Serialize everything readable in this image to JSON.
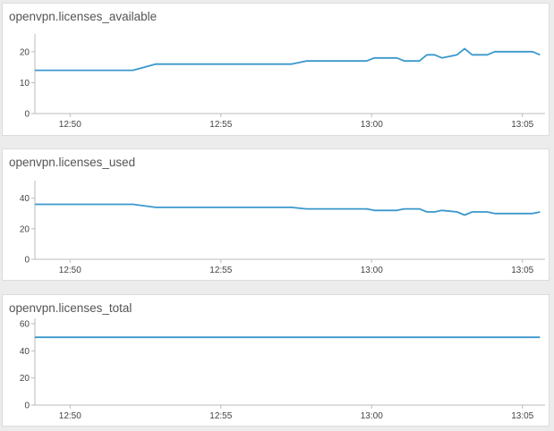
{
  "style": {
    "line_color": "#3a98cc",
    "axis_color": "#bbbbbb",
    "text_color": "#444444"
  },
  "panels": [
    {
      "title": "openvpn.licenses_available",
      "chart_data": {
        "type": "line",
        "title": "openvpn.licenses_available",
        "x_ticks": [
          "12:50",
          "12:55",
          "13:00",
          "13:05"
        ],
        "y_ticks": [
          0,
          10,
          20
        ],
        "ylim": [
          0,
          24
        ],
        "xlim": [
          "12:48:50",
          "13:05:45"
        ],
        "grid": false,
        "series": [
          {
            "x": [
              "12:48:50",
              "12:49:50",
              "12:50:50",
              "12:51:50",
              "12:52:05",
              "12:52:50",
              "12:53:50",
              "12:54:50",
              "12:55:50",
              "12:56:50",
              "12:57:05",
              "12:57:20",
              "12:57:50",
              "12:58:50",
              "12:59:50",
              "13:00:05",
              "13:00:50",
              "13:01:05",
              "13:01:35",
              "13:01:50",
              "13:02:05",
              "13:02:20",
              "13:02:50",
              "13:03:05",
              "13:03:20",
              "13:03:50",
              "13:04:05",
              "13:04:50",
              "13:05:20",
              "13:05:35"
            ],
            "values": [
              14,
              14,
              14,
              14,
              14,
              16,
              16,
              16,
              16,
              16,
              16,
              16,
              17,
              17,
              17,
              18,
              18,
              17,
              17,
              19,
              19,
              18,
              19,
              21,
              19,
              19,
              20,
              20,
              20,
              19
            ]
          }
        ]
      }
    },
    {
      "title": "openvpn.licenses_used",
      "chart_data": {
        "type": "line",
        "title": "openvpn.licenses_used",
        "x_ticks": [
          "12:50",
          "12:55",
          "13:00",
          "13:05"
        ],
        "y_ticks": [
          0,
          20,
          40
        ],
        "ylim": [
          0,
          48
        ],
        "xlim": [
          "12:48:50",
          "13:05:45"
        ],
        "grid": false,
        "series": [
          {
            "x": [
              "12:48:50",
              "12:49:50",
              "12:50:50",
              "12:51:50",
              "12:52:05",
              "12:52:50",
              "12:53:50",
              "12:54:50",
              "12:55:50",
              "12:56:50",
              "12:57:05",
              "12:57:20",
              "12:57:50",
              "12:58:50",
              "12:59:50",
              "13:00:05",
              "13:00:50",
              "13:01:05",
              "13:01:35",
              "13:01:50",
              "13:02:05",
              "13:02:20",
              "13:02:50",
              "13:03:05",
              "13:03:20",
              "13:03:50",
              "13:04:05",
              "13:04:50",
              "13:05:20",
              "13:05:35"
            ],
            "values": [
              36,
              36,
              36,
              36,
              36,
              34,
              34,
              34,
              34,
              34,
              34,
              34,
              33,
              33,
              33,
              32,
              32,
              33,
              33,
              31,
              31,
              32,
              31,
              29,
              31,
              31,
              30,
              30,
              30,
              31
            ]
          }
        ]
      }
    },
    {
      "title": "openvpn.licenses_total",
      "chart_data": {
        "type": "line",
        "title": "openvpn.licenses_total",
        "x_ticks": [
          "12:50",
          "12:55",
          "13:00",
          "13:05"
        ],
        "y_ticks": [
          0,
          20,
          40,
          60
        ],
        "ylim": [
          0,
          60
        ],
        "xlim": [
          "12:48:50",
          "13:05:45"
        ],
        "grid": false,
        "series": [
          {
            "x": [
              "12:48:50",
              "13:05:35"
            ],
            "values": [
              50,
              50
            ]
          }
        ]
      }
    }
  ]
}
